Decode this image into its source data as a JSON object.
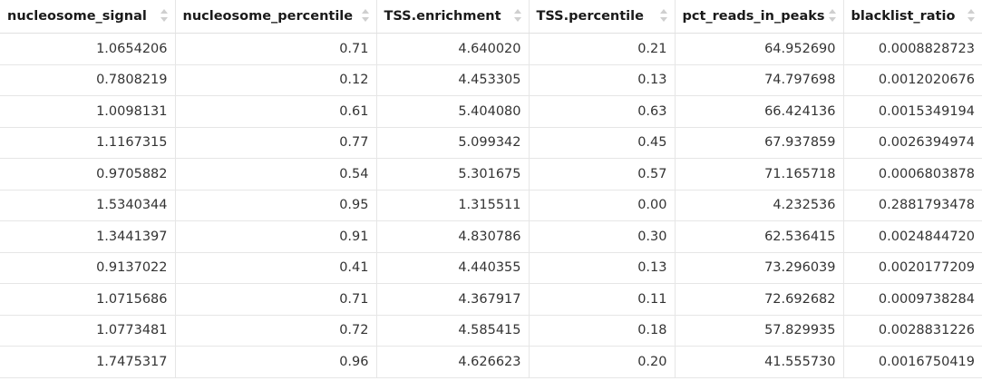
{
  "table": {
    "columns": [
      "nucleosome_signal",
      "nucleosome_percentile",
      "TSS.enrichment",
      "TSS.percentile",
      "pct_reads_in_peaks",
      "blacklist_ratio"
    ],
    "sort_icon": "sort-arrows-icon",
    "rows": [
      [
        "1.0654206",
        "0.71",
        "4.640020",
        "0.21",
        "64.952690",
        "0.0008828723"
      ],
      [
        "0.7808219",
        "0.12",
        "4.453305",
        "0.13",
        "74.797698",
        "0.0012020676"
      ],
      [
        "1.0098131",
        "0.61",
        "5.404080",
        "0.63",
        "66.424136",
        "0.0015349194"
      ],
      [
        "1.1167315",
        "0.77",
        "5.099342",
        "0.45",
        "67.937859",
        "0.0026394974"
      ],
      [
        "0.9705882",
        "0.54",
        "5.301675",
        "0.57",
        "71.165718",
        "0.0006803878"
      ],
      [
        "1.5340344",
        "0.95",
        "1.315511",
        "0.00",
        "4.232536",
        "0.2881793478"
      ],
      [
        "1.3441397",
        "0.91",
        "4.830786",
        "0.30",
        "62.536415",
        "0.0024844720"
      ],
      [
        "0.9137022",
        "0.41",
        "4.440355",
        "0.13",
        "73.296039",
        "0.0020177209"
      ],
      [
        "1.0715686",
        "0.71",
        "4.367917",
        "0.11",
        "72.692682",
        "0.0009738284"
      ],
      [
        "1.0773481",
        "0.72",
        "4.585415",
        "0.18",
        "57.829935",
        "0.0028831226"
      ],
      [
        "1.7475317",
        "0.96",
        "4.626623",
        "0.20",
        "41.555730",
        "0.0016750419"
      ]
    ]
  }
}
